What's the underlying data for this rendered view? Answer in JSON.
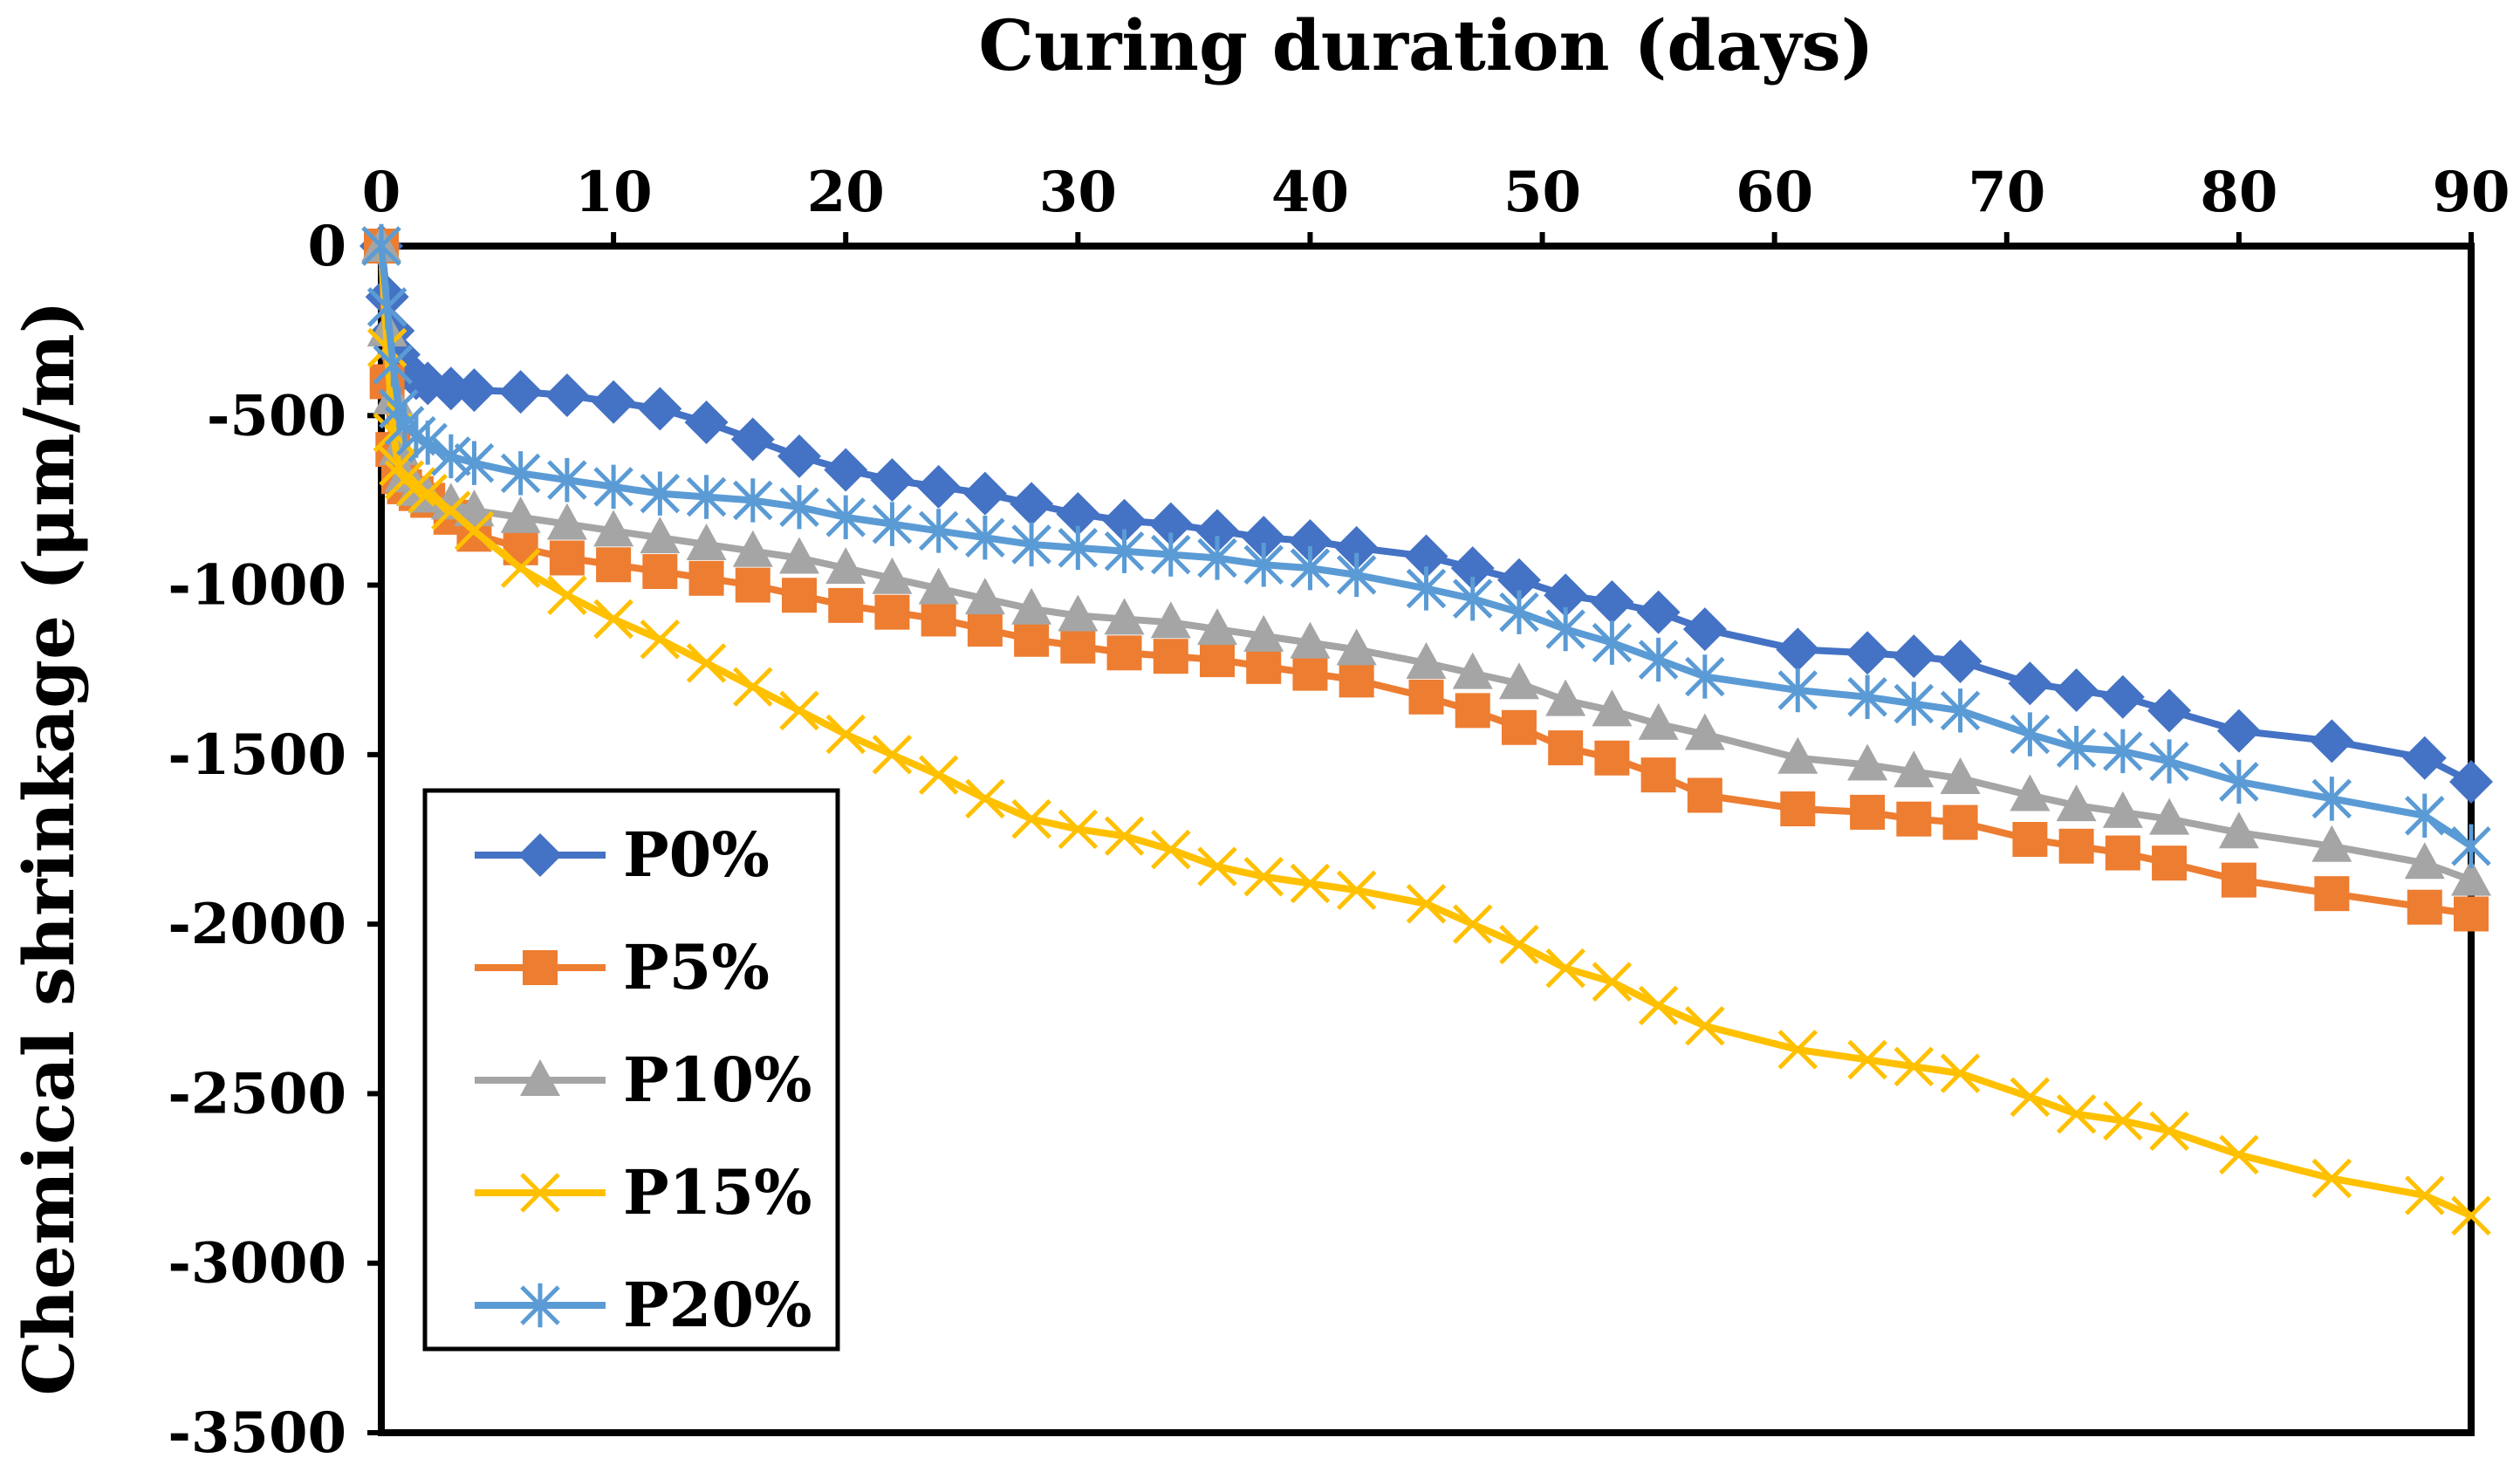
{
  "chart_data": {
    "type": "line",
    "title": "",
    "xlabel": "Curing duration (days)",
    "ylabel": "Chemical shrinkage (μm/m)",
    "xlim": [
      0,
      90
    ],
    "ylim": [
      -3500,
      0
    ],
    "xticks": [
      0,
      10,
      20,
      30,
      40,
      50,
      60,
      70,
      80,
      90
    ],
    "yticks": [
      0,
      -500,
      -1000,
      -1500,
      -2000,
      -2500,
      -3000,
      -3500
    ],
    "x_axis_position": "top",
    "grid": false,
    "legend_position": "lower-left",
    "x": [
      0,
      0.25,
      0.5,
      0.75,
      1,
      1.5,
      2,
      3,
      4,
      6,
      8,
      10,
      12,
      14,
      16,
      18,
      20,
      22,
      24,
      26,
      28,
      30,
      32,
      34,
      36,
      38,
      40,
      42,
      45,
      47,
      49,
      51,
      53,
      55,
      57,
      61,
      64,
      66,
      68,
      71,
      73,
      75,
      77,
      80,
      84,
      88,
      90
    ],
    "series": [
      {
        "name": "P0%",
        "color": "#4472C4",
        "marker": "diamond",
        "values": [
          0,
          -150,
          -250,
          -320,
          -360,
          -390,
          -405,
          -420,
          -425,
          -430,
          -440,
          -460,
          -480,
          -520,
          -570,
          -620,
          -660,
          -690,
          -710,
          -730,
          -760,
          -790,
          -810,
          -820,
          -840,
          -860,
          -870,
          -890,
          -915,
          -950,
          -985,
          -1030,
          -1050,
          -1080,
          -1130,
          -1190,
          -1200,
          -1210,
          -1225,
          -1290,
          -1310,
          -1330,
          -1370,
          -1430,
          -1460,
          -1510,
          -1580
        ]
      },
      {
        "name": "P5%",
        "color": "#ED7D31",
        "marker": "square",
        "values": [
          0,
          -400,
          -600,
          -680,
          -710,
          -730,
          -750,
          -800,
          -850,
          -890,
          -920,
          -940,
          -960,
          -980,
          -1000,
          -1030,
          -1060,
          -1080,
          -1100,
          -1130,
          -1160,
          -1180,
          -1200,
          -1210,
          -1220,
          -1240,
          -1260,
          -1280,
          -1330,
          -1370,
          -1420,
          -1480,
          -1510,
          -1560,
          -1620,
          -1660,
          -1670,
          -1690,
          -1700,
          -1750,
          -1770,
          -1790,
          -1820,
          -1870,
          -1910,
          -1950,
          -1970
        ]
      },
      {
        "name": "P10%",
        "color": "#A5A5A5",
        "marker": "triangle",
        "values": [
          0,
          -250,
          -450,
          -600,
          -680,
          -720,
          -740,
          -760,
          -780,
          -800,
          -820,
          -840,
          -860,
          -880,
          -900,
          -920,
          -950,
          -980,
          -1010,
          -1040,
          -1070,
          -1090,
          -1100,
          -1110,
          -1130,
          -1150,
          -1170,
          -1190,
          -1230,
          -1260,
          -1290,
          -1340,
          -1370,
          -1410,
          -1440,
          -1510,
          -1530,
          -1550,
          -1570,
          -1620,
          -1650,
          -1670,
          -1690,
          -1730,
          -1770,
          -1820,
          -1870
        ]
      },
      {
        "name": "P15%",
        "color": "#FFC000",
        "marker": "x",
        "values": [
          0,
          -300,
          -550,
          -650,
          -690,
          -710,
          -730,
          -780,
          -840,
          -950,
          -1030,
          -1100,
          -1160,
          -1230,
          -1300,
          -1370,
          -1440,
          -1500,
          -1560,
          -1630,
          -1690,
          -1720,
          -1740,
          -1780,
          -1830,
          -1860,
          -1880,
          -1900,
          -1940,
          -2000,
          -2060,
          -2130,
          -2170,
          -2240,
          -2300,
          -2370,
          -2400,
          -2420,
          -2440,
          -2510,
          -2560,
          -2580,
          -2610,
          -2680,
          -2750,
          -2800,
          -2860
        ]
      },
      {
        "name": "P20%",
        "color": "#5B9BD5",
        "marker": "asterisk",
        "values": [
          0,
          -180,
          -350,
          -480,
          -530,
          -560,
          -580,
          -620,
          -640,
          -670,
          -690,
          -710,
          -730,
          -740,
          -750,
          -770,
          -800,
          -820,
          -840,
          -860,
          -880,
          -890,
          -900,
          -910,
          -920,
          -940,
          -950,
          -970,
          -1010,
          -1040,
          -1080,
          -1130,
          -1170,
          -1220,
          -1270,
          -1310,
          -1330,
          -1350,
          -1370,
          -1440,
          -1480,
          -1490,
          -1520,
          -1580,
          -1630,
          -1680,
          -1770
        ]
      }
    ]
  }
}
